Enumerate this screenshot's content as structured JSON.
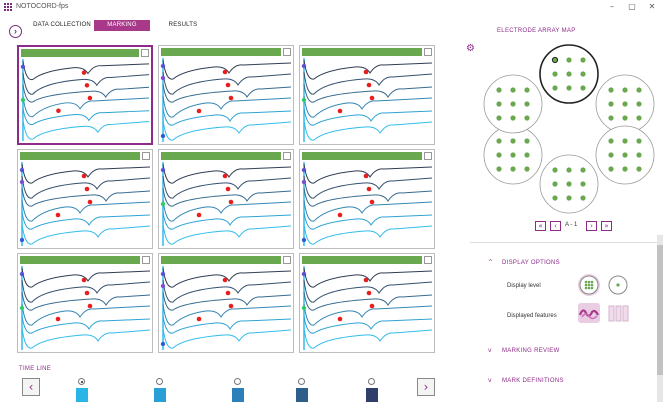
{
  "window": {
    "title": "NOTOCORD-fps",
    "minimize": "–",
    "maximize": "▢",
    "close": "✕"
  },
  "nav": {
    "back": "›",
    "tabs": [
      {
        "label": "DATA COLLECTION",
        "active": false
      },
      {
        "label": "MARKING",
        "active": true
      },
      {
        "label": "RESULTS",
        "active": false
      }
    ]
  },
  "colors": {
    "accent": "#8e2b8a",
    "header_green": "#6aa84f",
    "marker_red": "#e81e1e",
    "electrode_green": "#6aa84f",
    "trace_dark": "#34495e",
    "trace_light": "#29b6e6"
  },
  "timeline": {
    "label": "TIME LINE",
    "prev": "‹",
    "next": "›",
    "points": [
      {
        "selected": true,
        "color": "#29b6e6"
      },
      {
        "selected": false,
        "color": "#2a9fd6"
      },
      {
        "selected": false,
        "color": "#2c7fb8"
      },
      {
        "selected": false,
        "color": "#2e5f8a"
      },
      {
        "selected": false,
        "color": "#2f3f6a"
      }
    ]
  },
  "electrode_map": {
    "title": "ELECTRODE ARRAY MAP",
    "selected_well": 0,
    "pager": {
      "first": "«",
      "prev": "‹",
      "label": "A - 1",
      "next": "›",
      "last": "»"
    }
  },
  "display_options": {
    "title": "DISPLAY OPTIONS",
    "chevron": "^",
    "display_level_label": "Display level",
    "displayed_features_label": "Displayed features"
  },
  "sections": [
    {
      "title": "MARKING REVIEW",
      "chevron": "v"
    },
    {
      "title": "MARK DEFINITIONS",
      "chevron": "v"
    }
  ],
  "settings_icon": "gear-icon"
}
